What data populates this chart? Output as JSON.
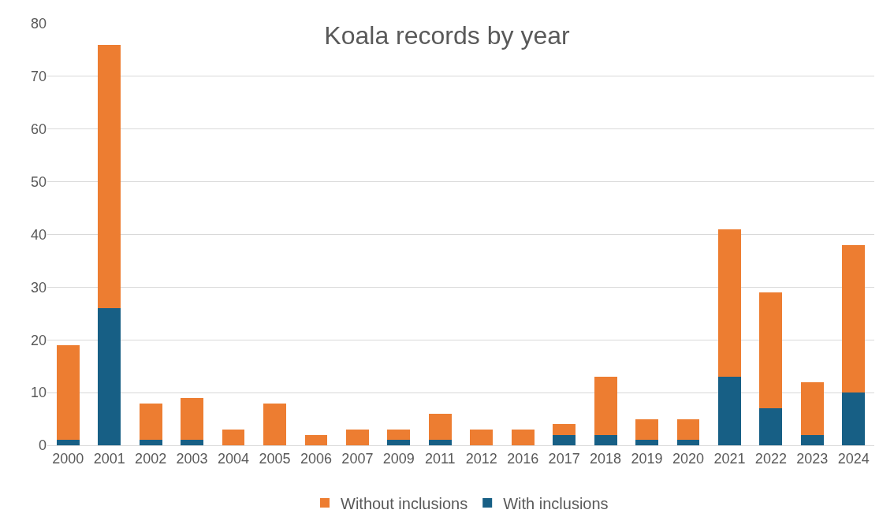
{
  "chart_data": {
    "type": "bar",
    "title": "Koala records by year",
    "stacked": true,
    "categories": [
      "2000",
      "2001",
      "2002",
      "2003",
      "2004",
      "2005",
      "2006",
      "2007",
      "2009",
      "2011",
      "2012",
      "2016",
      "2017",
      "2018",
      "2019",
      "2020",
      "2021",
      "2022",
      "2023",
      "2024"
    ],
    "series": [
      {
        "name": "With inclusions",
        "color": "#175f85",
        "values": [
          1,
          26,
          1,
          1,
          0,
          0,
          0,
          0,
          1,
          1,
          0,
          0,
          2,
          2,
          1,
          1,
          13,
          7,
          2,
          10
        ]
      },
      {
        "name": "Without inclusions",
        "color": "#ed7d31",
        "values": [
          18,
          50,
          7,
          8,
          3,
          8,
          2,
          3,
          2,
          5,
          3,
          3,
          2,
          11,
          4,
          4,
          28,
          22,
          10,
          28
        ]
      }
    ],
    "ylim": [
      0,
      80
    ],
    "yticks": [
      0,
      10,
      20,
      30,
      40,
      50,
      60,
      70,
      80
    ],
    "grid": "y",
    "legend": "bottom"
  }
}
